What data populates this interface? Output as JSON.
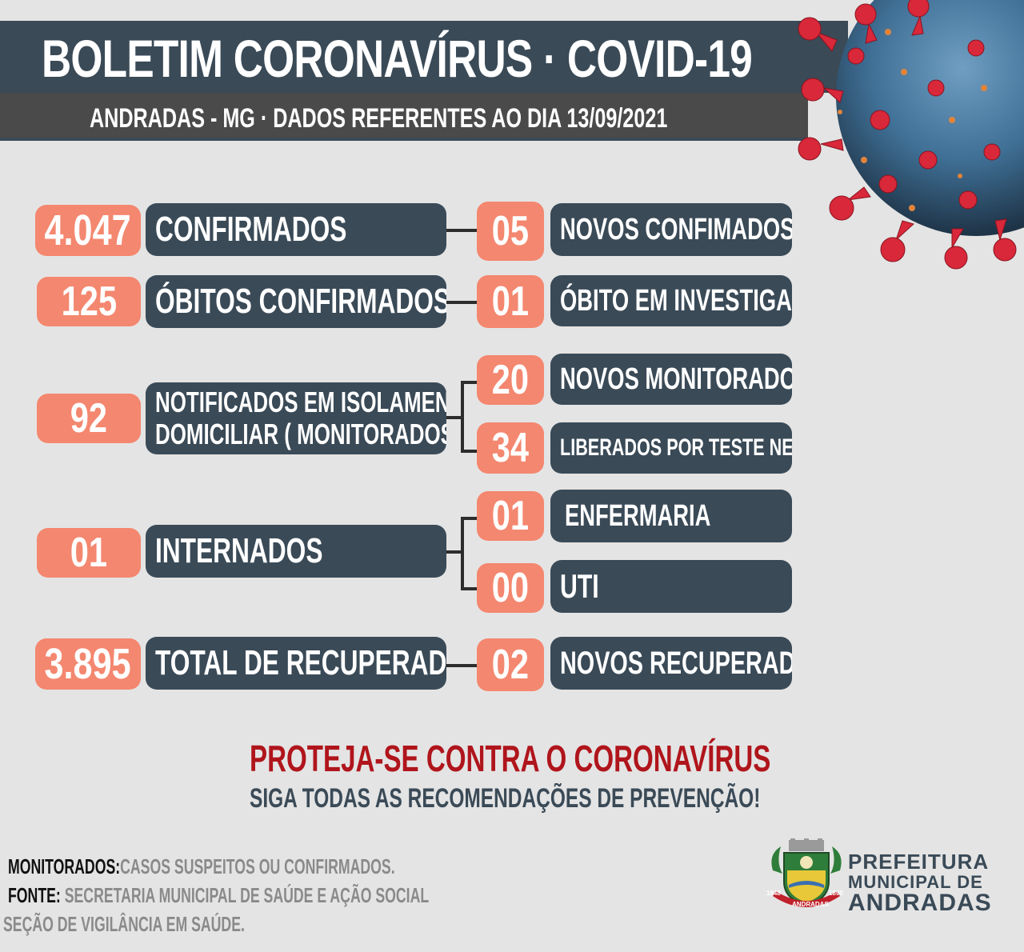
{
  "header": {
    "title": "BOLETIM CORONAVÍRUS · COVID-19",
    "subtitle": "ANDRADAS  - MG   ·  DADOS REFERENTES  AO  DIA 13/09/2021"
  },
  "rows": {
    "confirmados": {
      "value": "4.047",
      "label": "CONFIRMADOS",
      "new_value": "05",
      "new_label": "NOVOS CONFIMADOS"
    },
    "obitos": {
      "value": "125",
      "label": "ÓBITOS CONFIRMADOS",
      "new_value": "01",
      "new_label": "ÓBITO EM INVESTIGAÇÃO"
    },
    "monitorados": {
      "value": "92",
      "label_line1": "NOTIFICADOS EM ISOLAMENTO",
      "label_line2": "DOMICILIAR ( MONITORADOS )",
      "novos_value": "20",
      "novos_label": "NOVOS MONITORADOS",
      "liberados_value": "34",
      "liberados_label": "LIBERADOS POR TESTE NEGATIVOS"
    },
    "internados": {
      "value": "01",
      "label": "INTERNADOS",
      "enfermaria_value": "01",
      "enfermaria_label": "ENFERMARIA",
      "uti_value": "00",
      "uti_label": "UTI"
    },
    "recuperados": {
      "value": "3.895",
      "label": "TOTAL DE RECUPERADOS",
      "new_value": "02",
      "new_label": "NOVOS RECUPERADOS"
    }
  },
  "slogan": {
    "line1": "PROTEJA-SE CONTRA O CORONAVÍRUS",
    "line2": "SIGA TODAS AS RECOMENDAÇÕES DE PREVENÇÃO!"
  },
  "footer": {
    "monitorados_key": "MONITORADOS:",
    "monitorados_value": "CASOS SUSPEITOS OU CONFIRMADOS.",
    "fonte_key": "FONTE:",
    "fonte_value": " SECRETARIA MUNICIPAL DE SAÚDE E AÇÃO SOCIAL",
    "secao": "SEÇÃO DE VIGILÂNCIA EM SAÚDE."
  },
  "logo": {
    "line1": "PREFEITURA",
    "line2": "MUNICIPAL DE",
    "line3": "ANDRADAS",
    "seal_text": "ANDRADAS",
    "seal_year_left": "1848",
    "seal_year_right": "1890"
  },
  "colors": {
    "header_bg": "#3a4a57",
    "accent_salmon": "#f4876f",
    "label_bg": "#3a4a57",
    "slogan_red": "#b0151c",
    "page_bg": "#e4e4e4"
  }
}
